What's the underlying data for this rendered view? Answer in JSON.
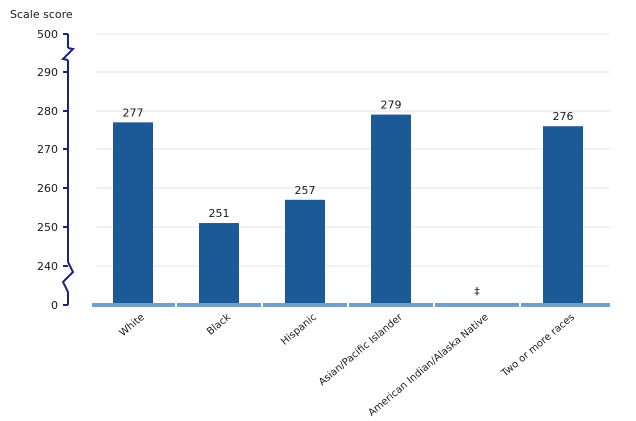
{
  "chart_data": {
    "type": "bar",
    "ylabel": "Scale score",
    "categories": [
      "White",
      "Black",
      "Hispanic",
      "Asian/Pacific Islander",
      "American Indian/Alaska Native",
      "Two or more races"
    ],
    "values": [
      277,
      251,
      257,
      279,
      null,
      276
    ],
    "data_labels": [
      "277",
      "251",
      "257",
      "279",
      "‡",
      "276"
    ],
    "y_ticks": [
      "500",
      "290",
      "280",
      "270",
      "260",
      "250",
      "240",
      "0"
    ],
    "axis_breaks": [
      "between 500 and 290",
      "between 240 and 0"
    ],
    "ylim_display": [
      235,
      290
    ],
    "grid": true,
    "legend": "none",
    "colors": {
      "bar": "#1b5a96",
      "axis": "#1a237e",
      "baseline": "#6f9fcb",
      "grid": "#e6e6e6"
    }
  }
}
